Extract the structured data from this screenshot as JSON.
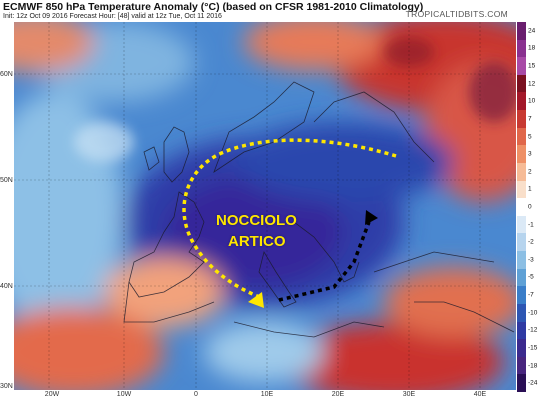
{
  "header": {
    "title": "ECMWF 850 hPa Temperature Anomaly (°C) (based on CFSR 1981-2010 Climatology)",
    "subtitle": "Init: 12z Oct 09 2016   Forecast Hour: [48]   valid at 12z Tue, Oct 11 2016",
    "brand": "TROPICALTIDBITS.COM"
  },
  "map": {
    "lat_labels": [
      "60N",
      "50N",
      "40N",
      "30N"
    ],
    "lon_labels": [
      "20W",
      "10W",
      "0",
      "10E",
      "20E",
      "30E",
      "40E"
    ],
    "annotation": {
      "line1": "NOCCIOLO",
      "line2": "ARTICO",
      "color": "#ffe600"
    }
  },
  "colorbar": {
    "labels": [
      "24",
      "18",
      "15",
      "12",
      "10",
      "7",
      "5",
      "3",
      "2",
      "1",
      "0",
      "-1",
      "-2",
      "-3",
      "-5",
      "-7",
      "-10",
      "-12",
      "-15",
      "-18",
      "-24"
    ],
    "colors": [
      "#6a1e6e",
      "#8a3190",
      "#a84aa6",
      "#7a1020",
      "#a3182a",
      "#c83a32",
      "#e0674a",
      "#ee9066",
      "#f6bb96",
      "#f9dfca",
      "#ffffff",
      "#dbe9f6",
      "#b6d4ee",
      "#8cbfe4",
      "#5fa1d6",
      "#3a7ec9",
      "#2d56b3",
      "#2f3aa3",
      "#3b2a8e",
      "#48257e",
      "#2a0f55"
    ]
  }
}
